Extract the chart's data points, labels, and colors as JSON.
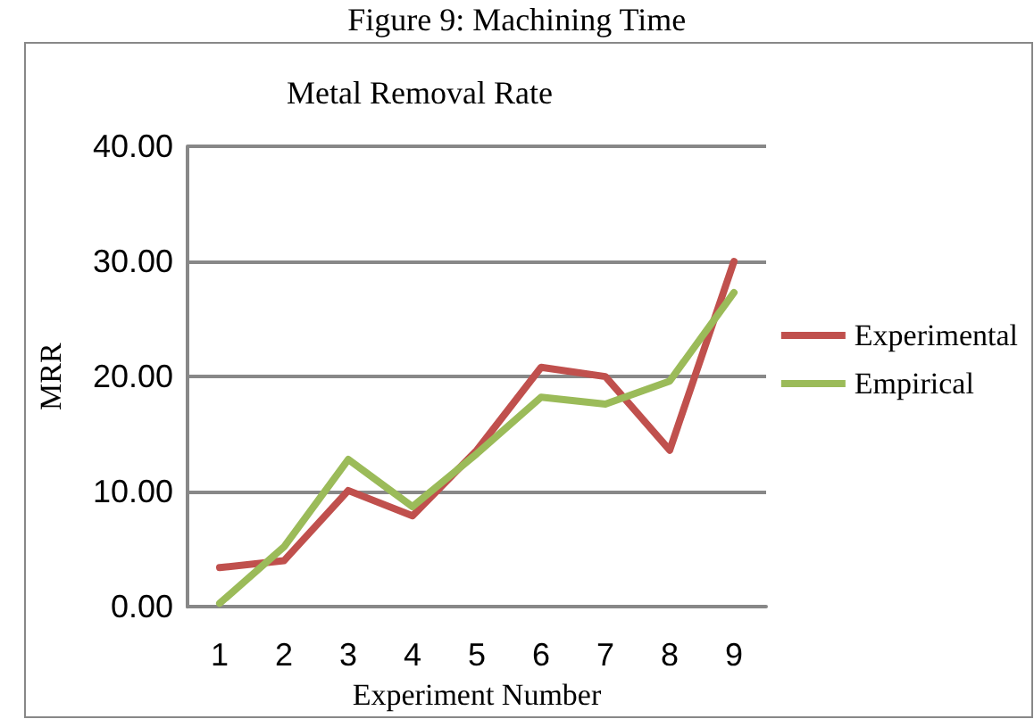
{
  "chart_data": {
    "type": "line",
    "title": "Metal Removal Rate",
    "annotations": [
      "Figure 9: Machining Time"
    ],
    "xlabel": "Experiment Number",
    "ylabel": "MRR",
    "categories": [
      "1",
      "2",
      "3",
      "4",
      "5",
      "6",
      "7",
      "8",
      "9"
    ],
    "series": [
      {
        "name": "Experimental",
        "color": "#c0504d",
        "values": [
          3.4,
          4.0,
          10.1,
          7.9,
          13.6,
          20.8,
          20.0,
          13.6,
          30.0
        ]
      },
      {
        "name": "Empirical",
        "color": "#9bbb59",
        "values": [
          0.3,
          5.2,
          12.8,
          8.7,
          13.3,
          18.2,
          17.6,
          19.6,
          27.3
        ]
      }
    ],
    "ylim": [
      0,
      40
    ],
    "yticks": [
      {
        "value": 0,
        "label": "0.00"
      },
      {
        "value": 10,
        "label": "10.00"
      },
      {
        "value": 20,
        "label": "20.00"
      },
      {
        "value": 30,
        "label": "30.00"
      },
      {
        "value": 40,
        "label": "40.00"
      }
    ],
    "grid": "y",
    "legend": "right",
    "marker": "none",
    "line_style": "solid"
  }
}
